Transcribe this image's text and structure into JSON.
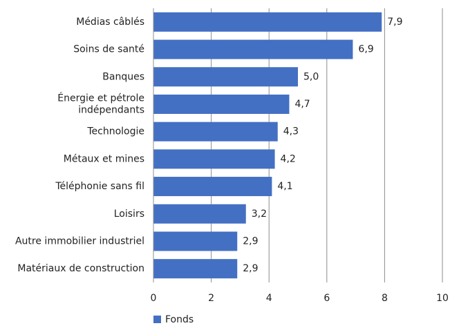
{
  "chart_data": {
    "type": "bar",
    "orientation": "horizontal",
    "categories": [
      "Médias câblés",
      "Soins de santé",
      "Banques",
      "Énergie et pétrole\nindépendants",
      "Technologie",
      "Métaux et mines",
      "Téléphonie sans fil",
      "Loisirs",
      "Autre immobilier industriel",
      "Matériaux de construction"
    ],
    "series": [
      {
        "name": "Fonds",
        "color": "#4470c3",
        "values": [
          7.9,
          6.9,
          5.0,
          4.7,
          4.3,
          4.2,
          4.1,
          3.2,
          2.9,
          2.9
        ],
        "value_labels": [
          "7,9",
          "6,9",
          "5,0",
          "4,7",
          "4,3",
          "4,2",
          "4,1",
          "3,2",
          "2,9",
          "2,9"
        ]
      }
    ],
    "xlim": [
      0,
      10
    ],
    "xticks": [
      0,
      2,
      4,
      6,
      8,
      10
    ],
    "grid": true,
    "legend": "bottom-left"
  }
}
